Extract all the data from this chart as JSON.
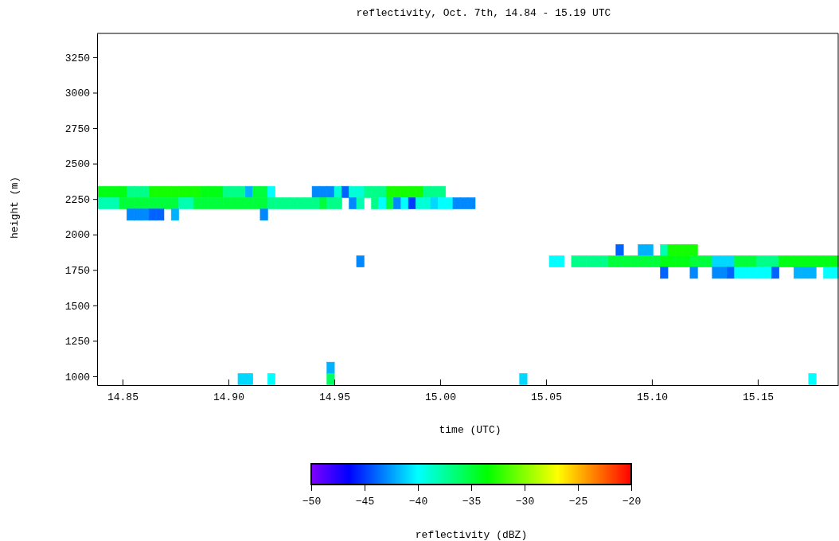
{
  "chart_data": {
    "type": "scatter",
    "marker": "square",
    "title": "reflectivity, Oct. 7th, 14.84 - 15.19 UTC",
    "xlabel": "time (UTC)",
    "ylabel": "height (m)",
    "clabel": "reflectivity (dBZ)",
    "xlim": [
      14.838,
      15.188
    ],
    "ylim": [
      938,
      3418
    ],
    "xticks": [
      14.85,
      {
        "value": 14.9,
        "label": "14.90"
      },
      14.95,
      {
        "value": 15,
        "label": "15.00"
      },
      15.05,
      {
        "value": 15.1,
        "label": "15.10"
      },
      15.15
    ],
    "yticks": [
      1000,
      1250,
      1500,
      1750,
      2000,
      2250,
      2500,
      2750,
      3000,
      3250
    ],
    "clim": [
      -50,
      -20
    ],
    "cticks": [
      -50,
      -45,
      -40,
      -35,
      -30,
      -25,
      -20
    ],
    "series": [
      {
        "x": [
          14.8398,
          14.8433,
          14.8468,
          14.8503,
          14.8538,
          14.8573,
          14.8608,
          14.8643,
          14.8678,
          14.8713,
          14.8748,
          14.8783,
          14.8818,
          14.8853,
          14.8888,
          14.8923,
          14.8958,
          14.8993,
          14.9028,
          14.9063,
          14.9098,
          14.9133,
          14.9168,
          14.9203,
          14.9413,
          14.9448,
          14.9483,
          14.9518,
          14.9553,
          14.9588,
          14.9623,
          14.9658,
          14.9693,
          14.9728,
          14.9763,
          14.9798,
          14.9833,
          14.9868,
          14.9903,
          14.9938,
          14.9973,
          15.0008
        ],
        "values": [
          2300,
          2300,
          2300,
          2300,
          2300,
          2300,
          2300,
          2300,
          2300,
          2300,
          2300,
          2300,
          2300,
          2300,
          2300,
          2300,
          2300,
          2300,
          2300,
          2300,
          2300,
          2300,
          2300,
          2300,
          2300,
          2300,
          2300,
          2300,
          2300,
          2300,
          2300,
          2300,
          2300,
          2300,
          2300,
          2300,
          2300,
          2300,
          2300,
          2300,
          2300,
          2300
        ],
        "cvalues": [
          -34,
          -34,
          -34,
          -34,
          -37,
          -37,
          -37,
          -33,
          -33,
          -33,
          -33,
          -33,
          -33,
          -33,
          -34,
          -34,
          -34,
          -37,
          -37,
          -37,
          -42,
          -35,
          -35,
          -40,
          -43,
          -43,
          -43,
          -39,
          -44,
          -39,
          -39,
          -37,
          -37,
          -37,
          -33,
          -33,
          -33,
          -33,
          -33,
          -37,
          -37,
          -37
        ],
        "colors": [
          "#00ff13",
          "#00ff13",
          "#00ff13",
          "#00ff13",
          "#00ff89",
          "#00ff89",
          "#00ff89",
          "#13ff00",
          "#13ff00",
          "#13ff00",
          "#13ff00",
          "#13ff00",
          "#13ff00",
          "#13ff00",
          "#00ff13",
          "#00ff13",
          "#00ff13",
          "#00ff89",
          "#00ff89",
          "#00ff89",
          "#00b1ff",
          "#00ff3b",
          "#00ff3b",
          "#00ffff",
          "#0089ff",
          "#0089ff",
          "#0089ff",
          "#00ffd7",
          "#0062ff",
          "#00ffd7",
          "#00ffd7",
          "#00ff89",
          "#00ff89",
          "#00ff89",
          "#13ff00",
          "#13ff00",
          "#13ff00",
          "#13ff00",
          "#13ff00",
          "#00ff89",
          "#00ff89",
          "#00ff89"
        ]
      },
      {
        "x": [
          14.8398,
          14.8433,
          14.8468,
          14.8503,
          14.8538,
          14.8573,
          14.8608,
          14.8643,
          14.8678,
          14.8713,
          14.8748,
          14.8783,
          14.8818,
          14.8853,
          14.8888,
          14.8923,
          14.8958,
          14.8993,
          14.9028,
          14.9063,
          14.9098,
          14.9133,
          14.9168,
          14.9203,
          14.9238,
          14.9273,
          14.9308,
          14.9343,
          14.9378,
          14.9413,
          14.9448,
          14.9483,
          14.9518,
          14.9588,
          14.9623,
          14.9693,
          14.9728,
          14.9763,
          14.9798,
          14.9833,
          14.9868,
          14.9903,
          14.9938,
          14.9973,
          15.0008,
          15.0043,
          15.0078,
          15.0113,
          15.0148
        ],
        "values": [
          2220,
          2220,
          2220,
          2220,
          2220,
          2220,
          2220,
          2220,
          2220,
          2220,
          2220,
          2220,
          2220,
          2220,
          2220,
          2220,
          2220,
          2220,
          2220,
          2220,
          2220,
          2220,
          2220,
          2220,
          2220,
          2220,
          2220,
          2220,
          2220,
          2220,
          2220,
          2220,
          2220,
          2220,
          2220,
          2220,
          2220,
          2220,
          2220,
          2220,
          2220,
          2220,
          2220,
          2220,
          2220,
          2220,
          2220,
          2220,
          2220
        ],
        "cvalues": [
          -38,
          -38,
          -38,
          -35,
          -35,
          -35,
          -35,
          -35,
          -35,
          -35,
          -35,
          -38,
          -38,
          -35,
          -35,
          -35,
          -35,
          -35,
          -35,
          -35,
          -35,
          -35,
          -35,
          -37,
          -37,
          -37,
          -37,
          -37,
          -37,
          -37,
          -35,
          -37,
          -37,
          -43,
          -38,
          -37,
          -40,
          -35,
          -43,
          -40,
          -45,
          -39,
          -39,
          -41,
          -40,
          -40,
          -43,
          -43,
          -43
        ],
        "colors": [
          "#00ffb0",
          "#00ffb0",
          "#00ffb0",
          "#00ff3b",
          "#00ff3b",
          "#00ff3b",
          "#00ff3b",
          "#00ff3b",
          "#00ff3b",
          "#00ff3b",
          "#00ff3b",
          "#00ffb0",
          "#00ffb0",
          "#00ff3b",
          "#00ff3b",
          "#00ff3b",
          "#00ff3b",
          "#00ff3b",
          "#00ff3b",
          "#00ff3b",
          "#00ff3b",
          "#00ff3b",
          "#00ff3b",
          "#00ff89",
          "#00ff89",
          "#00ff89",
          "#00ff89",
          "#00ff89",
          "#00ff89",
          "#00ff89",
          "#00ff3b",
          "#00ff89",
          "#00ff89",
          "#0089ff",
          "#00ffb0",
          "#00ff89",
          "#00ffff",
          "#00ff3b",
          "#0089ff",
          "#00ffff",
          "#003bff",
          "#00ffd7",
          "#00ffd7",
          "#00d8ff",
          "#00ffff",
          "#00ffff",
          "#0089ff",
          "#0089ff",
          "#0089ff"
        ]
      },
      {
        "x": [
          14.8538,
          14.8573,
          14.8608,
          14.8643,
          14.8678,
          14.8748,
          14.9168
        ],
        "values": [
          2140,
          2140,
          2140,
          2140,
          2140,
          2140,
          2140
        ],
        "cvalues": [
          -43,
          -43,
          -43,
          -44,
          -44,
          -42,
          -43
        ],
        "colors": [
          "#0089ff",
          "#0089ff",
          "#0089ff",
          "#0062ff",
          "#0062ff",
          "#00b1ff",
          "#0089ff"
        ]
      },
      {
        "x": [
          15.0848,
          15.0953,
          15.0988,
          15.1058,
          15.1093,
          15.1128,
          15.1163,
          15.1198
        ],
        "values": [
          1890,
          1890,
          1890,
          1890,
          1890,
          1890,
          1890,
          1890
        ],
        "cvalues": [
          -44,
          -42,
          -42,
          -38,
          -33,
          -33,
          -33,
          -33
        ],
        "colors": [
          "#0062ff",
          "#00b1ff",
          "#00b1ff",
          "#00ffb0",
          "#13ff00",
          "#13ff00",
          "#13ff00",
          "#13ff00"
        ]
      },
      {
        "x": [
          14.9623,
          15.0533,
          15.0568,
          15.0638,
          15.0673,
          15.0708,
          15.0743,
          15.0778,
          15.0813,
          15.0848,
          15.0883,
          15.0918,
          15.0953,
          15.0988,
          15.1023,
          15.1058,
          15.1093,
          15.1128,
          15.1163,
          15.1198,
          15.1233,
          15.1268,
          15.1303,
          15.1338,
          15.1373,
          15.1408,
          15.1443,
          15.1478,
          15.1513,
          15.1548,
          15.1583,
          15.1618,
          15.1653,
          15.1688,
          15.1723,
          15.1758,
          15.1793,
          15.1828,
          15.1863
        ],
        "values": [
          1810,
          1810,
          1810,
          1810,
          1810,
          1810,
          1810,
          1810,
          1810,
          1810,
          1810,
          1810,
          1810,
          1810,
          1810,
          1810,
          1810,
          1810,
          1810,
          1810,
          1810,
          1810,
          1810,
          1810,
          1810,
          1810,
          1810,
          1810,
          1810,
          1810,
          1810,
          1810,
          1810,
          1810,
          1810,
          1810,
          1810,
          1810,
          1810
        ],
        "cvalues": [
          -43,
          -40,
          -40,
          -37,
          -37,
          -37,
          -37,
          -37,
          -35,
          -35,
          -35,
          -35,
          -35,
          -35,
          -35,
          -34,
          -34,
          -34,
          -34,
          -35,
          -35,
          -35,
          -41,
          -41,
          -41,
          -35,
          -35,
          -35,
          -37,
          -37,
          -37,
          -34,
          -34,
          -34,
          -34,
          -34,
          -34,
          -34,
          -34
        ],
        "colors": [
          "#0089ff",
          "#00ffff",
          "#00ffff",
          "#00ff89",
          "#00ff89",
          "#00ff89",
          "#00ff89",
          "#00ff89",
          "#00ff3b",
          "#00ff3b",
          "#00ff3b",
          "#00ff3b",
          "#00ff3b",
          "#00ff3b",
          "#00ff3b",
          "#00ff13",
          "#00ff13",
          "#00ff13",
          "#00ff13",
          "#00ff3b",
          "#00ff3b",
          "#00ff3b",
          "#00d8ff",
          "#00d8ff",
          "#00d8ff",
          "#00ff3b",
          "#00ff3b",
          "#00ff3b",
          "#00ff89",
          "#00ff89",
          "#00ff89",
          "#00ff13",
          "#00ff13",
          "#00ff13",
          "#00ff13",
          "#00ff13",
          "#00ff13",
          "#00ff13",
          "#00ff13"
        ]
      },
      {
        "x": [
          15.1058,
          15.1198,
          15.1303,
          15.1338,
          15.1373,
          15.1408,
          15.1443,
          15.1478,
          15.1513,
          15.1548,
          15.1583,
          15.1688,
          15.1723,
          15.1758,
          15.1828,
          15.1863
        ],
        "values": [
          1730,
          1730,
          1730,
          1730,
          1730,
          1730,
          1730,
          1730,
          1730,
          1730,
          1730,
          1730,
          1730,
          1730,
          1730,
          1730
        ],
        "cvalues": [
          -44,
          -43,
          -43,
          -43,
          -44,
          -40,
          -40,
          -40,
          -40,
          -40,
          -44,
          -42,
          -42,
          -42,
          -40,
          -40
        ],
        "colors": [
          "#0062ff",
          "#0089ff",
          "#0089ff",
          "#0089ff",
          "#0062ff",
          "#00ffff",
          "#00ffff",
          "#00ffff",
          "#00ffff",
          "#00ffff",
          "#0062ff",
          "#00b1ff",
          "#00b1ff",
          "#00b1ff",
          "#00ffff",
          "#00ffff"
        ]
      },
      {
        "x": [
          14.9483
        ],
        "values": [
          1060
        ],
        "cvalues": [
          -42
        ],
        "color": "#00b1ff"
      },
      {
        "x": [
          14.9063,
          14.9098,
          14.9203,
          14.9483,
          15.0393,
          15.1758
        ],
        "values": [
          980,
          980,
          980,
          980,
          980,
          980
        ],
        "cvalues": [
          -41,
          -41,
          -40,
          -36,
          -41,
          -40
        ],
        "colors": [
          "#00d8ff",
          "#00d8ff",
          "#00ffff",
          "#00ff62",
          "#00d8ff",
          "#00ffff"
        ]
      }
    ]
  }
}
